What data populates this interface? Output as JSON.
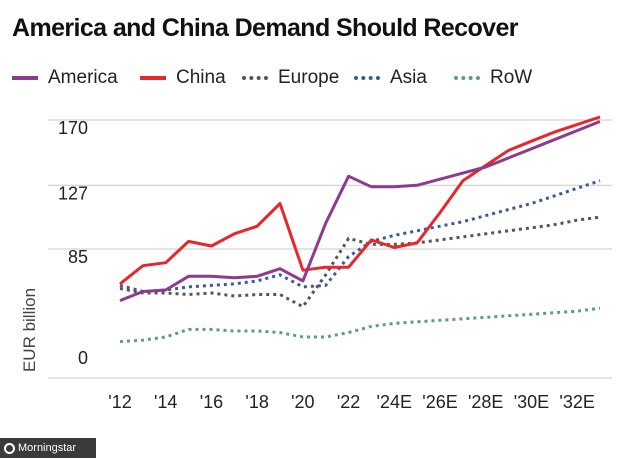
{
  "title": "America and China Demand Should Recover",
  "footer": {
    "brand": "Morningstar",
    "label": "© Morningstar"
  },
  "chart_data": {
    "type": "line",
    "title": "America and China Demand Should Recover",
    "xlabel": "",
    "ylabel": "EUR billion",
    "ylim": [
      0,
      170
    ],
    "yticks": [
      0,
      85,
      127,
      170
    ],
    "ytick_labels": [
      "0",
      "85",
      "127",
      "170"
    ],
    "xlim": [
      2012,
      2033
    ],
    "xticks": [
      2012,
      2014,
      2016,
      2018,
      2020,
      2022,
      2024,
      2026,
      2028,
      2030,
      2032
    ],
    "xtick_labels": [
      "'12",
      "'14",
      "'16",
      "'18",
      "'20",
      "'22",
      "'24E",
      "'26E",
      "'28E",
      "'30E",
      "'32E"
    ],
    "grid": "horizontal",
    "legend_position": "top",
    "series": [
      {
        "name": "America",
        "color": "#8e3b8e",
        "style": "solid",
        "x": [
          2012,
          2013,
          2014,
          2015,
          2016,
          2017,
          2018,
          2019,
          2020,
          2021,
          2022,
          2023,
          2024,
          2025,
          2026,
          2027,
          2028,
          2029,
          2030,
          2031,
          2032,
          2033
        ],
        "values": [
          51,
          57,
          58,
          67,
          67,
          66,
          67,
          72,
          64,
          102,
          133,
          126,
          126,
          127,
          131,
          135,
          139,
          145,
          151,
          157,
          163,
          169
        ]
      },
      {
        "name": "China",
        "color": "#e8262c",
        "style": "solid",
        "x": [
          2012,
          2013,
          2014,
          2015,
          2016,
          2017,
          2018,
          2019,
          2020,
          2021,
          2022,
          2023,
          2024,
          2025,
          2026,
          2027,
          2028,
          2029,
          2030,
          2031,
          2032,
          2033
        ],
        "values": [
          62,
          74,
          76,
          90,
          87,
          95,
          100,
          115,
          71,
          73,
          73,
          91,
          86,
          89,
          109,
          130,
          140,
          150,
          156,
          162,
          167,
          172
        ]
      },
      {
        "name": "Europe",
        "color": "#555555",
        "style": "dotted",
        "x": [
          2012,
          2013,
          2014,
          2015,
          2016,
          2017,
          2018,
          2019,
          2020,
          2021,
          2022,
          2023,
          2024,
          2025,
          2026,
          2027,
          2028,
          2029,
          2030,
          2031,
          2032,
          2033
        ],
        "values": [
          59,
          56,
          56,
          55,
          56,
          54,
          55,
          55,
          47,
          68,
          92,
          88,
          88,
          89,
          91,
          93,
          95,
          97,
          99,
          101,
          104,
          106
        ]
      },
      {
        "name": "Asia",
        "color": "#3a5a9c",
        "style": "dotted",
        "x": [
          2012,
          2013,
          2014,
          2015,
          2016,
          2017,
          2018,
          2019,
          2020,
          2021,
          2022,
          2023,
          2024,
          2025,
          2026,
          2027,
          2028,
          2029,
          2030,
          2031,
          2032,
          2033
        ],
        "values": [
          61,
          57,
          58,
          60,
          61,
          62,
          64,
          68,
          60,
          61,
          80,
          90,
          94,
          97,
          100,
          103,
          107,
          111,
          115,
          120,
          125,
          130
        ]
      },
      {
        "name": "RoW",
        "color": "#5b9a94",
        "style": "dotted",
        "x": [
          2012,
          2013,
          2014,
          2015,
          2016,
          2017,
          2018,
          2019,
          2020,
          2021,
          2022,
          2023,
          2024,
          2025,
          2026,
          2027,
          2028,
          2029,
          2030,
          2031,
          2032,
          2033
        ],
        "values": [
          24,
          25,
          27,
          32,
          32,
          31,
          31,
          30,
          27,
          27,
          30,
          34,
          36,
          37,
          38,
          39,
          40,
          41,
          42,
          43,
          44,
          46
        ]
      }
    ]
  }
}
